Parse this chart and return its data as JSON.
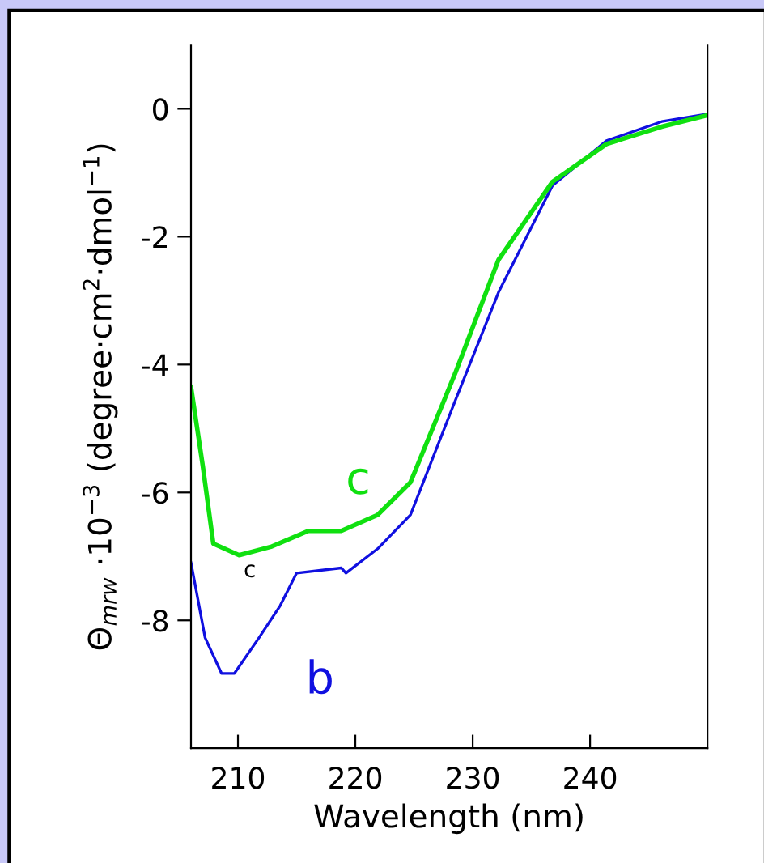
{
  "chart_data": {
    "type": "line",
    "xlabel": "Wavelength (nm)",
    "ylabel": "Θ$_{mrw}$ ·10$^{−3}$ (degree·cm$^{2}$·dmol$^{−1}$)",
    "xlim": [
      206,
      250
    ],
    "ylim": [
      -10,
      1
    ],
    "xticks": [
      210,
      220,
      230,
      240
    ],
    "yticks": [
      0,
      -2,
      -4,
      -6,
      -8
    ],
    "grid": false,
    "legend": false,
    "series": [
      {
        "name": "b",
        "color": "#1010e0",
        "x": [
          206,
          207.2,
          208.6,
          209.7,
          211.8,
          213.6,
          215,
          218.8,
          219.2,
          221.9,
          224.7,
          228.5,
          232.2,
          236.8,
          241.4,
          246.1,
          250
        ],
        "values": [
          -7.1,
          -8.27,
          -8.83,
          -8.83,
          -8.27,
          -7.77,
          -7.26,
          -7.18,
          -7.26,
          -6.88,
          -6.35,
          -4.57,
          -2.87,
          -1.2,
          -0.5,
          -0.2,
          -0.08
        ]
      },
      {
        "name": "c",
        "color": "#10e010",
        "x": [
          206,
          207,
          207.9,
          210.1,
          212.8,
          216,
          218.8,
          221.9,
          224.7,
          228.5,
          232.2,
          236.8,
          241.4,
          246.1,
          250
        ],
        "values": [
          -4.35,
          -5.58,
          -6.8,
          -6.98,
          -6.85,
          -6.6,
          -6.6,
          -6.35,
          -5.84,
          -4.14,
          -2.36,
          -1.14,
          -0.55,
          -0.28,
          -0.1
        ]
      }
    ],
    "annotations": [
      {
        "text": "c",
        "x": 210.1,
        "y": -6.98
      }
    ]
  }
}
